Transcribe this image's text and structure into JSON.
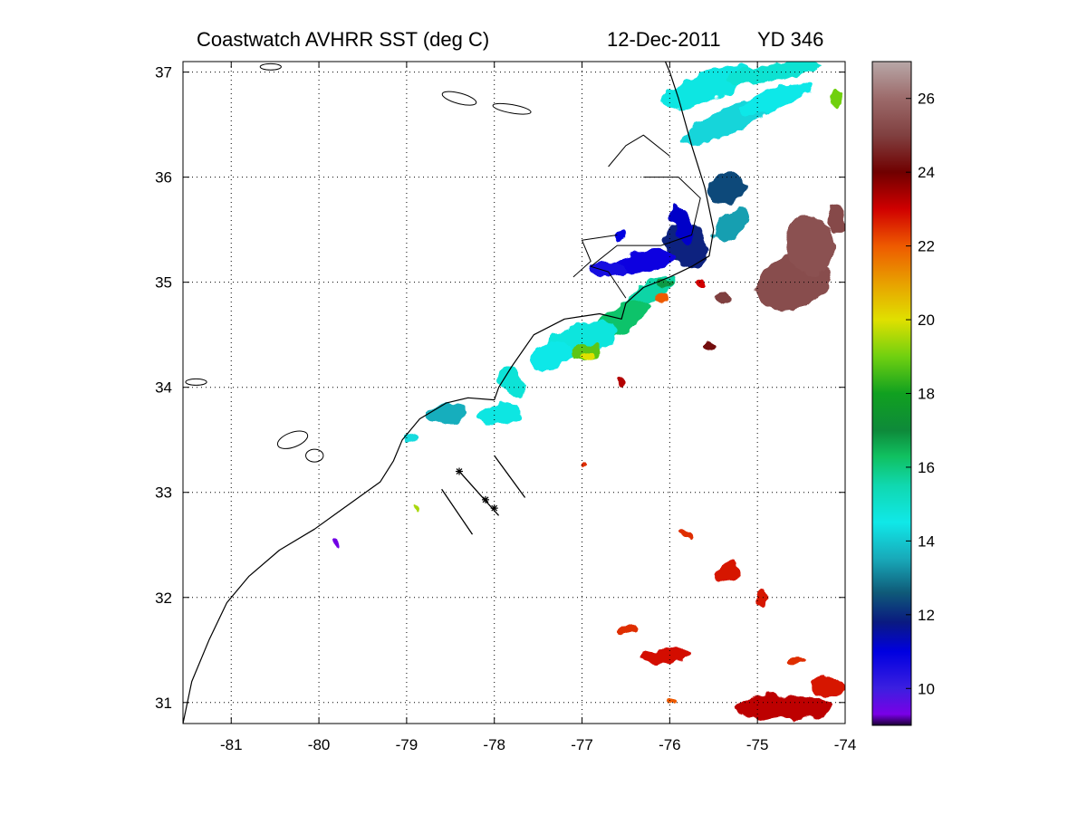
{
  "chart_data": {
    "type": "heatmap",
    "title": {
      "left": "Coastwatch   AVHRR   SST  (deg C)",
      "date": "12-Dec-2011",
      "yearday": "YD 346"
    },
    "xlabel": "",
    "ylabel": "",
    "xlim": [
      -81.55,
      -74.0
    ],
    "ylim": [
      30.8,
      37.1
    ],
    "xticks": [
      -81,
      -80,
      -79,
      -78,
      -77,
      -76,
      -75,
      -74
    ],
    "yticks": [
      31,
      32,
      33,
      34,
      35,
      36,
      37
    ],
    "grid": true,
    "colorbar": {
      "range": [
        9,
        27
      ],
      "ticks": [
        10,
        12,
        14,
        16,
        18,
        20,
        22,
        24,
        26
      ],
      "units": "deg C",
      "stops": [
        {
          "v": 9.0,
          "c": "#1a0033"
        },
        {
          "v": 9.3,
          "c": "#7a00e6"
        },
        {
          "v": 10.0,
          "c": "#3c1fe0"
        },
        {
          "v": 11.0,
          "c": "#0000e0"
        },
        {
          "v": 11.8,
          "c": "#0a1a80"
        },
        {
          "v": 12.6,
          "c": "#0f5a78"
        },
        {
          "v": 13.5,
          "c": "#18a8b8"
        },
        {
          "v": 14.5,
          "c": "#10e8e8"
        },
        {
          "v": 15.5,
          "c": "#10d8b0"
        },
        {
          "v": 16.3,
          "c": "#10c060"
        },
        {
          "v": 17.0,
          "c": "#0e8a3a"
        },
        {
          "v": 18.0,
          "c": "#10a020"
        },
        {
          "v": 19.0,
          "c": "#70d010"
        },
        {
          "v": 20.0,
          "c": "#e0e000"
        },
        {
          "v": 21.0,
          "c": "#e8a000"
        },
        {
          "v": 22.0,
          "c": "#ee5a00"
        },
        {
          "v": 23.0,
          "c": "#d00000"
        },
        {
          "v": 24.0,
          "c": "#700000"
        },
        {
          "v": 25.0,
          "c": "#804040"
        },
        {
          "v": 26.0,
          "c": "#9c6a6a"
        },
        {
          "v": 27.0,
          "c": "#b8a8a8"
        }
      ]
    },
    "sst_patches": [
      {
        "lon": -75.6,
        "lat": 36.85,
        "rx": 0.55,
        "ry": 0.13,
        "rot": -22,
        "sst": 14.6
      },
      {
        "lon": -74.8,
        "lat": 37.0,
        "rx": 0.55,
        "ry": 0.08,
        "rot": -10,
        "sst": 14.9
      },
      {
        "lon": -75.3,
        "lat": 36.55,
        "rx": 0.6,
        "ry": 0.12,
        "rot": -25,
        "sst": 14.2
      },
      {
        "lon": -74.8,
        "lat": 36.75,
        "rx": 0.45,
        "ry": 0.1,
        "rot": -20,
        "sst": 14.5
      },
      {
        "lon": -74.1,
        "lat": 36.75,
        "rx": 0.08,
        "ry": 0.07,
        "rot": 0,
        "sst": 19.0
      },
      {
        "lon": -75.35,
        "lat": 35.9,
        "rx": 0.22,
        "ry": 0.14,
        "rot": -30,
        "sst": 12.4
      },
      {
        "lon": -75.3,
        "lat": 35.55,
        "rx": 0.25,
        "ry": 0.12,
        "rot": -40,
        "sst": 13.4
      },
      {
        "lon": -75.8,
        "lat": 35.35,
        "rx": 0.22,
        "ry": 0.25,
        "rot": -35,
        "sst": 11.9
      },
      {
        "lon": -75.85,
        "lat": 35.55,
        "rx": 0.12,
        "ry": 0.2,
        "rot": -20,
        "sst": 11.2
      },
      {
        "lon": -76.25,
        "lat": 35.2,
        "rx": 0.35,
        "ry": 0.1,
        "rot": -10,
        "sst": 10.8
      },
      {
        "lon": -76.7,
        "lat": 35.12,
        "rx": 0.22,
        "ry": 0.07,
        "rot": 0,
        "sst": 10.7
      },
      {
        "lon": -76.55,
        "lat": 35.45,
        "rx": 0.08,
        "ry": 0.05,
        "rot": 0,
        "sst": 11.0
      },
      {
        "lon": -76.2,
        "lat": 34.92,
        "rx": 0.35,
        "ry": 0.09,
        "rot": -30,
        "sst": 15.6
      },
      {
        "lon": -76.55,
        "lat": 34.65,
        "rx": 0.35,
        "ry": 0.12,
        "rot": -30,
        "sst": 16.2
      },
      {
        "lon": -77.0,
        "lat": 34.45,
        "rx": 0.42,
        "ry": 0.16,
        "rot": -15,
        "sst": 14.7
      },
      {
        "lon": -76.95,
        "lat": 34.33,
        "rx": 0.18,
        "ry": 0.07,
        "rot": -10,
        "sst": 18.8
      },
      {
        "lon": -76.95,
        "lat": 34.3,
        "rx": 0.08,
        "ry": 0.04,
        "rot": 0,
        "sst": 20.0
      },
      {
        "lon": -77.35,
        "lat": 34.3,
        "rx": 0.25,
        "ry": 0.12,
        "rot": -20,
        "sst": 14.5
      },
      {
        "lon": -77.8,
        "lat": 34.05,
        "rx": 0.12,
        "ry": 0.18,
        "rot": -40,
        "sst": 14.8
      },
      {
        "lon": -77.95,
        "lat": 33.75,
        "rx": 0.25,
        "ry": 0.1,
        "rot": -10,
        "sst": 14.6
      },
      {
        "lon": -78.55,
        "lat": 33.75,
        "rx": 0.25,
        "ry": 0.09,
        "rot": -10,
        "sst": 13.6
      },
      {
        "lon": -78.95,
        "lat": 33.52,
        "rx": 0.07,
        "ry": 0.05,
        "rot": 0,
        "sst": 14.3
      },
      {
        "lon": -76.05,
        "lat": 35.0,
        "rx": 0.12,
        "ry": 0.04,
        "rot": 0,
        "sst": 16.8
      },
      {
        "lon": -75.65,
        "lat": 35.0,
        "rx": 0.07,
        "ry": 0.05,
        "rot": 0,
        "sst": 23.0
      },
      {
        "lon": -76.1,
        "lat": 34.85,
        "rx": 0.06,
        "ry": 0.05,
        "rot": 0,
        "sst": 22.0
      },
      {
        "lon": -74.6,
        "lat": 35.0,
        "rx": 0.45,
        "ry": 0.25,
        "rot": -20,
        "sst": 25.3
      },
      {
        "lon": -74.4,
        "lat": 35.35,
        "rx": 0.28,
        "ry": 0.28,
        "rot": -20,
        "sst": 25.4
      },
      {
        "lon": -74.1,
        "lat": 35.6,
        "rx": 0.1,
        "ry": 0.15,
        "rot": 0,
        "sst": 25.2
      },
      {
        "lon": -75.4,
        "lat": 34.85,
        "rx": 0.1,
        "ry": 0.06,
        "rot": 0,
        "sst": 25.0
      },
      {
        "lon": -75.55,
        "lat": 34.4,
        "rx": 0.08,
        "ry": 0.05,
        "rot": 0,
        "sst": 24.2
      },
      {
        "lon": -76.55,
        "lat": 34.05,
        "rx": 0.05,
        "ry": 0.05,
        "rot": 0,
        "sst": 23.3
      },
      {
        "lon": -76.98,
        "lat": 33.25,
        "rx": 0.03,
        "ry": 0.03,
        "rot": 0,
        "sst": 22.5
      },
      {
        "lon": -78.9,
        "lat": 32.85,
        "rx": 0.04,
        "ry": 0.04,
        "rot": 0,
        "sst": 19.5
      },
      {
        "lon": -79.8,
        "lat": 32.52,
        "rx": 0.04,
        "ry": 0.04,
        "rot": 0,
        "sst": 9.4
      },
      {
        "lon": -75.35,
        "lat": 32.25,
        "rx": 0.14,
        "ry": 0.09,
        "rot": -10,
        "sst": 22.8
      },
      {
        "lon": -74.95,
        "lat": 32.0,
        "rx": 0.06,
        "ry": 0.1,
        "rot": 0,
        "sst": 22.8
      },
      {
        "lon": -76.5,
        "lat": 31.7,
        "rx": 0.12,
        "ry": 0.05,
        "rot": -20,
        "sst": 22.5
      },
      {
        "lon": -76.05,
        "lat": 31.45,
        "rx": 0.3,
        "ry": 0.06,
        "rot": -5,
        "sst": 22.9
      },
      {
        "lon": -74.7,
        "lat": 30.95,
        "rx": 0.55,
        "ry": 0.12,
        "rot": 0,
        "sst": 23.2
      },
      {
        "lon": -74.2,
        "lat": 31.15,
        "rx": 0.2,
        "ry": 0.1,
        "rot": 0,
        "sst": 22.8
      },
      {
        "lon": -74.55,
        "lat": 31.4,
        "rx": 0.12,
        "ry": 0.03,
        "rot": -10,
        "sst": 22.5
      },
      {
        "lon": -75.8,
        "lat": 32.6,
        "rx": 0.1,
        "ry": 0.03,
        "rot": 0,
        "sst": 22.5
      },
      {
        "lon": -76.0,
        "lat": 31.0,
        "rx": 0.05,
        "ry": 0.03,
        "rot": 0,
        "sst": 22.0
      }
    ],
    "coastline": [
      [
        -81.55,
        30.8
      ],
      [
        -81.45,
        31.2
      ],
      [
        -81.25,
        31.6
      ],
      [
        -81.05,
        31.95
      ],
      [
        -80.8,
        32.2
      ],
      [
        -80.45,
        32.45
      ],
      [
        -80.05,
        32.65
      ],
      [
        -79.8,
        32.8
      ],
      [
        -79.55,
        32.95
      ],
      [
        -79.3,
        33.1
      ],
      [
        -79.15,
        33.3
      ],
      [
        -79.05,
        33.5
      ],
      [
        -78.85,
        33.7
      ],
      [
        -78.55,
        33.85
      ],
      [
        -78.3,
        33.9
      ],
      [
        -78.0,
        33.88
      ],
      [
        -77.95,
        34.0
      ],
      [
        -77.8,
        34.2
      ],
      [
        -77.55,
        34.5
      ],
      [
        -77.2,
        34.65
      ],
      [
        -76.8,
        34.7
      ],
      [
        -76.55,
        34.65
      ],
      [
        -76.5,
        34.8
      ],
      [
        -76.3,
        34.95
      ],
      [
        -76.0,
        35.05
      ],
      [
        -75.75,
        35.15
      ],
      [
        -75.55,
        35.25
      ],
      [
        -75.5,
        35.5
      ],
      [
        -75.6,
        35.9
      ],
      [
        -75.75,
        36.3
      ],
      [
        -75.9,
        36.75
      ],
      [
        -76.0,
        37.0
      ],
      [
        -76.05,
        37.1
      ]
    ],
    "sounds": [
      [
        [
          -76.5,
          34.85
        ],
        [
          -76.7,
          35.1
        ],
        [
          -76.9,
          35.15
        ],
        [
          -76.6,
          35.35
        ],
        [
          -76.1,
          35.35
        ],
        [
          -75.75,
          35.45
        ],
        [
          -75.65,
          35.8
        ],
        [
          -75.9,
          36.0
        ],
        [
          -76.3,
          36.0
        ]
      ],
      [
        [
          -77.1,
          35.05
        ],
        [
          -76.9,
          35.2
        ],
        [
          -77.0,
          35.4
        ],
        [
          -76.6,
          35.45
        ]
      ],
      [
        [
          -76.0,
          36.2
        ],
        [
          -76.3,
          36.4
        ],
        [
          -76.5,
          36.3
        ],
        [
          -76.7,
          36.1
        ]
      ]
    ],
    "lakes": [
      {
        "lon": -78.4,
        "lat": 36.75,
        "rx": 0.2,
        "ry": 0.05,
        "rot": 15
      },
      {
        "lon": -77.8,
        "lat": 36.65,
        "rx": 0.22,
        "ry": 0.04,
        "rot": 10
      },
      {
        "lon": -80.55,
        "lat": 37.05,
        "rx": 0.12,
        "ry": 0.03,
        "rot": 0
      },
      {
        "lon": -81.4,
        "lat": 34.05,
        "rx": 0.12,
        "ry": 0.03,
        "rot": 0
      },
      {
        "lon": -80.3,
        "lat": 33.5,
        "rx": 0.18,
        "ry": 0.07,
        "rot": -20
      },
      {
        "lon": -80.05,
        "lat": 33.35,
        "rx": 0.1,
        "ry": 0.06,
        "rot": 0
      }
    ],
    "transects": [
      [
        [
          -78.0,
          33.35
        ],
        [
          -77.65,
          32.95
        ]
      ],
      [
        [
          -78.6,
          33.03
        ],
        [
          -78.25,
          32.6
        ]
      ]
    ],
    "station_line": [
      [
        -78.4,
        33.2
      ],
      [
        -77.95,
        32.78
      ]
    ],
    "stations": [
      [
        -78.4,
        33.2
      ],
      [
        -78.1,
        32.93
      ],
      [
        -78.0,
        32.85
      ]
    ]
  }
}
